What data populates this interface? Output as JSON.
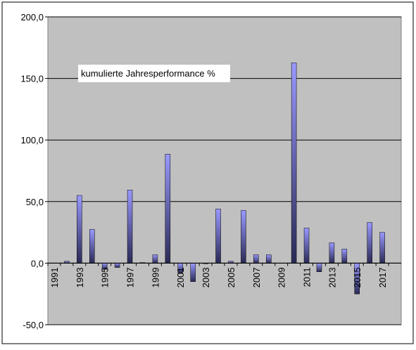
{
  "chart_data": {
    "type": "bar",
    "annotation": "kumulierte Jahresperformance %",
    "categories": [
      "1991",
      null,
      "1993",
      null,
      "1995",
      null,
      "1997",
      null,
      "1999",
      null,
      "2001",
      null,
      "2003",
      null,
      "2005",
      null,
      "2007",
      null,
      "2009",
      null,
      "2011",
      null,
      "2013",
      null,
      "2015",
      null,
      "2017",
      null
    ],
    "values": [
      0,
      1.5,
      55,
      27.4,
      -5,
      -3.5,
      59.4,
      0.5,
      6.8,
      88.5,
      -8,
      -15,
      -0.5,
      44,
      1.5,
      42.8,
      6.8,
      6.8,
      0,
      162.7,
      28.5,
      -7,
      16.5,
      11.4,
      -25,
      33,
      25,
      null
    ],
    "color": "#9999ff",
    "ylim": [
      -50,
      200
    ],
    "yticks": [
      {
        "value": -50,
        "label": "-50,0"
      },
      {
        "value": 0,
        "label": "0,0"
      },
      {
        "value": 50,
        "label": "50,0"
      },
      {
        "value": 100,
        "label": "100,0"
      },
      {
        "value": 150,
        "label": "150,0"
      },
      {
        "value": 200,
        "label": "200,0"
      }
    ],
    "grid": true
  }
}
